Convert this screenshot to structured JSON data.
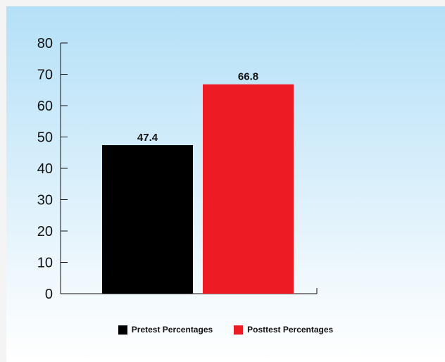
{
  "chart_data": {
    "type": "bar",
    "categories": [
      "Pretest Percentages",
      "Posttest Percentages"
    ],
    "values": [
      47.4,
      66.8
    ],
    "value_labels": [
      "47.4",
      "66.8"
    ],
    "colors": [
      "#000000",
      "#ed1c24"
    ],
    "title": "",
    "xlabel": "",
    "ylabel": "",
    "ylim": [
      0,
      80
    ],
    "yticks": [
      "0",
      "10",
      "20",
      "30",
      "40",
      "50",
      "60",
      "70",
      "80"
    ],
    "grid": false,
    "legend_position": "bottom"
  },
  "legend": {
    "items": [
      {
        "label": "Pretest Percentages",
        "color": "#000000"
      },
      {
        "label": "Posttest Percentages",
        "color": "#ed1c24"
      }
    ]
  }
}
